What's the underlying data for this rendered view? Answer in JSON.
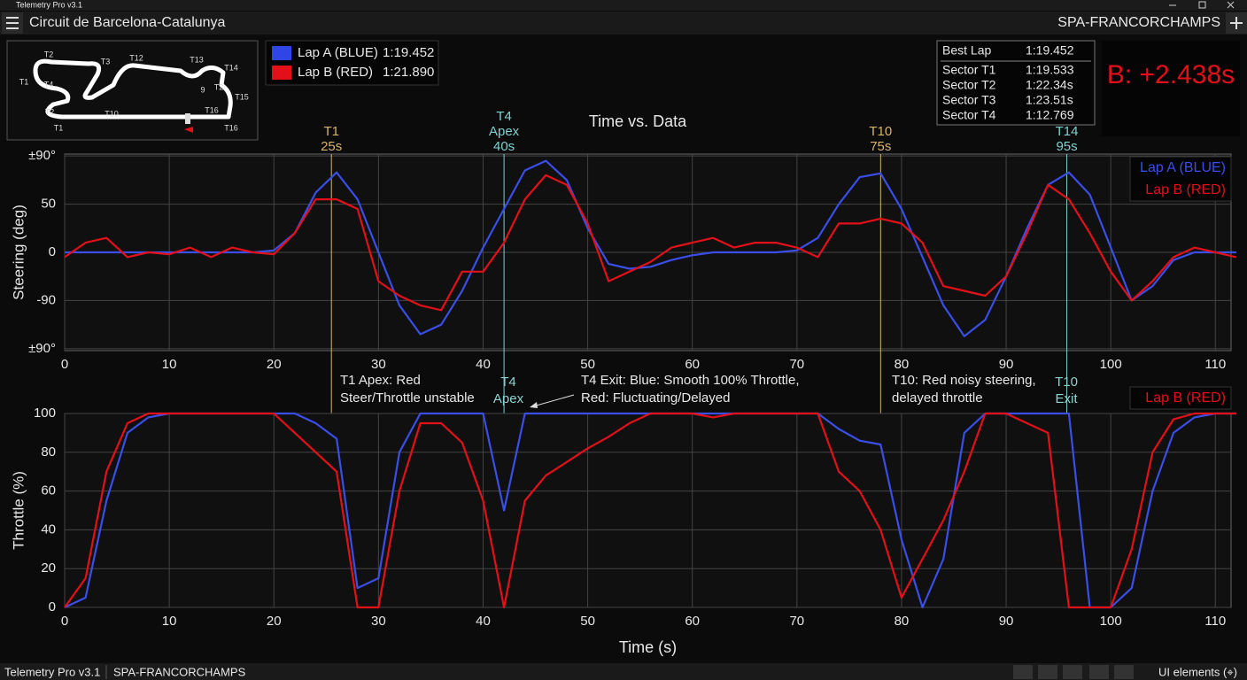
{
  "window": {
    "title": "Telemetry Pro v3.1"
  },
  "toolbar": {
    "left": "Circuit de Barcelona-Catalunya",
    "right": "SPA-FRANCORCHAMPS"
  },
  "track_map": {
    "labels": [
      "T2",
      "T3",
      "T12",
      "T13",
      "T14",
      "T1",
      "T4",
      "9",
      "T2",
      "T15",
      "T16",
      "T2",
      "T10",
      "T1",
      "T16"
    ]
  },
  "lap_legend": [
    {
      "name": "Lap A (BLUE)",
      "time": "1:19.452",
      "color": "#2f45e6"
    },
    {
      "name": "Lap B (RED)",
      "time": "1:21.890",
      "color": "#e3101a"
    }
  ],
  "lap_table": {
    "rows": [
      [
        "Best Lap",
        "1:19.452"
      ],
      [
        "Sector T1",
        "1:19.533"
      ],
      [
        "Sector T2",
        "1:22.34s"
      ],
      [
        "Sector T3",
        "1:23.51s"
      ],
      [
        "Sector T4",
        "1:12.769"
      ]
    ]
  },
  "delta": "B: +2.438s",
  "annotations": {
    "t1": [
      "T1 Apex: Red",
      "Steer/Throttle unstable"
    ],
    "t4": [
      "T4",
      "Apex"
    ],
    "t4_exit": [
      "T4 Exit: Blue: Smooth 100% Throttle,",
      "Red: Fluctuating/Delayed"
    ],
    "t10": [
      "T10: Red noisy steering,",
      "delayed throttle"
    ],
    "t10_exit": [
      "T10",
      "Exit"
    ]
  },
  "status_bar": {
    "left": [
      "Telemetry Pro v3.1",
      "SPA-FRANCORCHAMPS"
    ],
    "right": "UI elements (⌖)"
  },
  "chart_data": [
    {
      "type": "line",
      "title": "Time vs. Data",
      "y_label": "Steering (deg)",
      "x": [
        0,
        2,
        4,
        6,
        8,
        10,
        12,
        14,
        16,
        18,
        20,
        22,
        24,
        26,
        28,
        30,
        32,
        34,
        36,
        38,
        40,
        42,
        44,
        46,
        48,
        50,
        52,
        54,
        56,
        58,
        60,
        62,
        64,
        66,
        68,
        70,
        72,
        74,
        76,
        78,
        80,
        82,
        84,
        86,
        88,
        90,
        92,
        94,
        96,
        98,
        100,
        102,
        104,
        106,
        108,
        110,
        112
      ],
      "xlim": [
        0,
        111.5
      ],
      "xticks": [
        0,
        10,
        20,
        30,
        40,
        50,
        60,
        70,
        80,
        90,
        100,
        110
      ],
      "ylim": [
        -102,
        102
      ],
      "yticks": [
        {
          "value": 100,
          "label": "±90°"
        },
        50,
        0,
        {
          "value": -50,
          "label": "-90"
        },
        {
          "value": -100,
          "label": "±90°"
        }
      ],
      "grid": true,
      "legend": "upper right",
      "markers": [
        {
          "x": 25.5,
          "labels": [
            "T1",
            "25s"
          ],
          "color": "#d8b46c"
        },
        {
          "x": 42,
          "labels": [
            "T4",
            "Apex",
            "40s"
          ],
          "color": "#7fd0d0"
        },
        {
          "x": 78,
          "labels": [
            "T10",
            "75s"
          ],
          "color": "#d8b46c"
        },
        {
          "x": 95.8,
          "labels": [
            "T14",
            "95s"
          ],
          "color": "#7fd0d0"
        }
      ],
      "series": [
        {
          "name": "Lap A (BLUE)",
          "color": "#3a4ee8",
          "values": [
            0,
            0,
            0,
            0,
            0,
            0,
            0,
            0,
            0,
            0,
            2,
            20,
            62,
            83,
            55,
            0,
            -55,
            -85,
            -75,
            -40,
            5,
            45,
            85,
            95,
            75,
            25,
            -12,
            -17,
            -15,
            -8,
            -3,
            0,
            0,
            0,
            0,
            2,
            15,
            50,
            78,
            82,
            45,
            -5,
            -55,
            -87,
            -70,
            -25,
            25,
            70,
            83,
            60,
            5,
            -50,
            -35,
            -8,
            0,
            0,
            0
          ]
        },
        {
          "name": "Lap B (RED)",
          "color": "#e3101a",
          "values": [
            -5,
            10,
            15,
            -5,
            0,
            -2,
            5,
            -5,
            5,
            0,
            -2,
            20,
            55,
            55,
            45,
            -30,
            -45,
            -55,
            -60,
            -20,
            -20,
            10,
            55,
            80,
            70,
            30,
            -30,
            -20,
            -10,
            5,
            10,
            15,
            5,
            10,
            10,
            5,
            -5,
            30,
            30,
            35,
            30,
            10,
            -35,
            -40,
            -45,
            -25,
            20,
            70,
            55,
            20,
            -20,
            -50,
            -30,
            -5,
            5,
            0,
            -5
          ]
        }
      ]
    },
    {
      "type": "line",
      "x_label": "Time (s)",
      "y_label": "Throttle (%)",
      "x": [
        0,
        2,
        4,
        6,
        8,
        10,
        12,
        14,
        16,
        18,
        20,
        22,
        24,
        26,
        28,
        30,
        32,
        34,
        36,
        38,
        40,
        42,
        44,
        46,
        48,
        50,
        52,
        54,
        56,
        58,
        60,
        62,
        64,
        66,
        68,
        70,
        72,
        74,
        76,
        78,
        80,
        82,
        84,
        86,
        88,
        90,
        92,
        94,
        96,
        98,
        100,
        102,
        104,
        106,
        108,
        110,
        112
      ],
      "xlim": [
        0,
        111.5
      ],
      "xticks": [
        0,
        10,
        20,
        30,
        40,
        50,
        60,
        70,
        80,
        90,
        100,
        110
      ],
      "ylim": [
        0,
        100
      ],
      "yticks": [
        0,
        20,
        40,
        60,
        80,
        100
      ],
      "grid": true,
      "legend": "upper right",
      "series": [
        {
          "color": "#3a4ee8",
          "values": [
            0,
            5,
            55,
            90,
            98,
            100,
            100,
            100,
            100,
            100,
            100,
            100,
            95,
            87,
            10,
            15,
            80,
            100,
            100,
            100,
            100,
            50,
            100,
            100,
            100,
            100,
            100,
            100,
            100,
            100,
            100,
            100,
            100,
            100,
            100,
            100,
            100,
            92,
            86,
            84,
            35,
            0,
            25,
            90,
            100,
            100,
            100,
            100,
            100,
            0,
            0,
            10,
            60,
            90,
            98,
            100,
            100
          ]
        },
        {
          "name": "Lap B (RED)",
          "color": "#e3101a",
          "values": [
            0,
            15,
            70,
            95,
            100,
            100,
            100,
            100,
            100,
            100,
            100,
            90,
            80,
            70,
            0,
            0,
            60,
            95,
            95,
            85,
            55,
            0,
            55,
            68,
            75,
            82,
            88,
            95,
            100,
            100,
            100,
            98,
            100,
            100,
            100,
            100,
            100,
            70,
            60,
            40,
            5,
            25,
            45,
            70,
            100,
            100,
            95,
            90,
            0,
            0,
            0,
            30,
            80,
            97,
            100,
            100,
            100
          ]
        }
      ]
    }
  ]
}
